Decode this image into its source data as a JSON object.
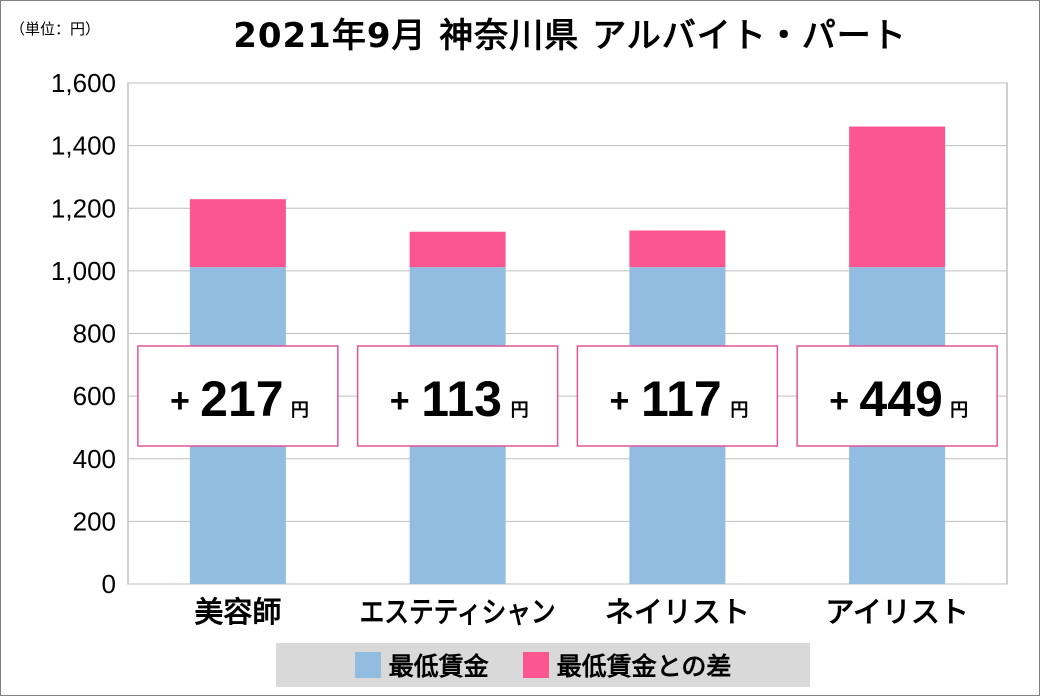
{
  "unit_note": "（単位：円）",
  "colors": {
    "base": "#92bde0",
    "diff": "#fc5690",
    "diff_box_border": "#e0559a",
    "grid": "#bfbfbf"
  },
  "chart_data": {
    "type": "bar",
    "stacked": true,
    "title": "2021年9月 神奈川県 アルバイト・パート",
    "categories": [
      "美容師",
      "エステティシャン",
      "ネイリスト",
      "アイリスト"
    ],
    "series": [
      {
        "name": "最低賃金",
        "values": [
          1012,
          1012,
          1012,
          1012
        ]
      },
      {
        "name": "最低賃金との差",
        "values": [
          217,
          113,
          117,
          449
        ]
      }
    ],
    "ylim": [
      0,
      1600
    ],
    "yticks": [
      "0",
      "200",
      "400",
      "600",
      "800",
      "1,000",
      "1,200",
      "1,400",
      "1,600"
    ],
    "grid": true,
    "legend_position": "bottom",
    "annotations": [
      {
        "sign": "+",
        "value": "217",
        "unit": "円"
      },
      {
        "sign": "+",
        "value": "113",
        "unit": "円"
      },
      {
        "sign": "+",
        "value": "117",
        "unit": "円"
      },
      {
        "sign": "+",
        "value": "449",
        "unit": "円"
      }
    ]
  }
}
